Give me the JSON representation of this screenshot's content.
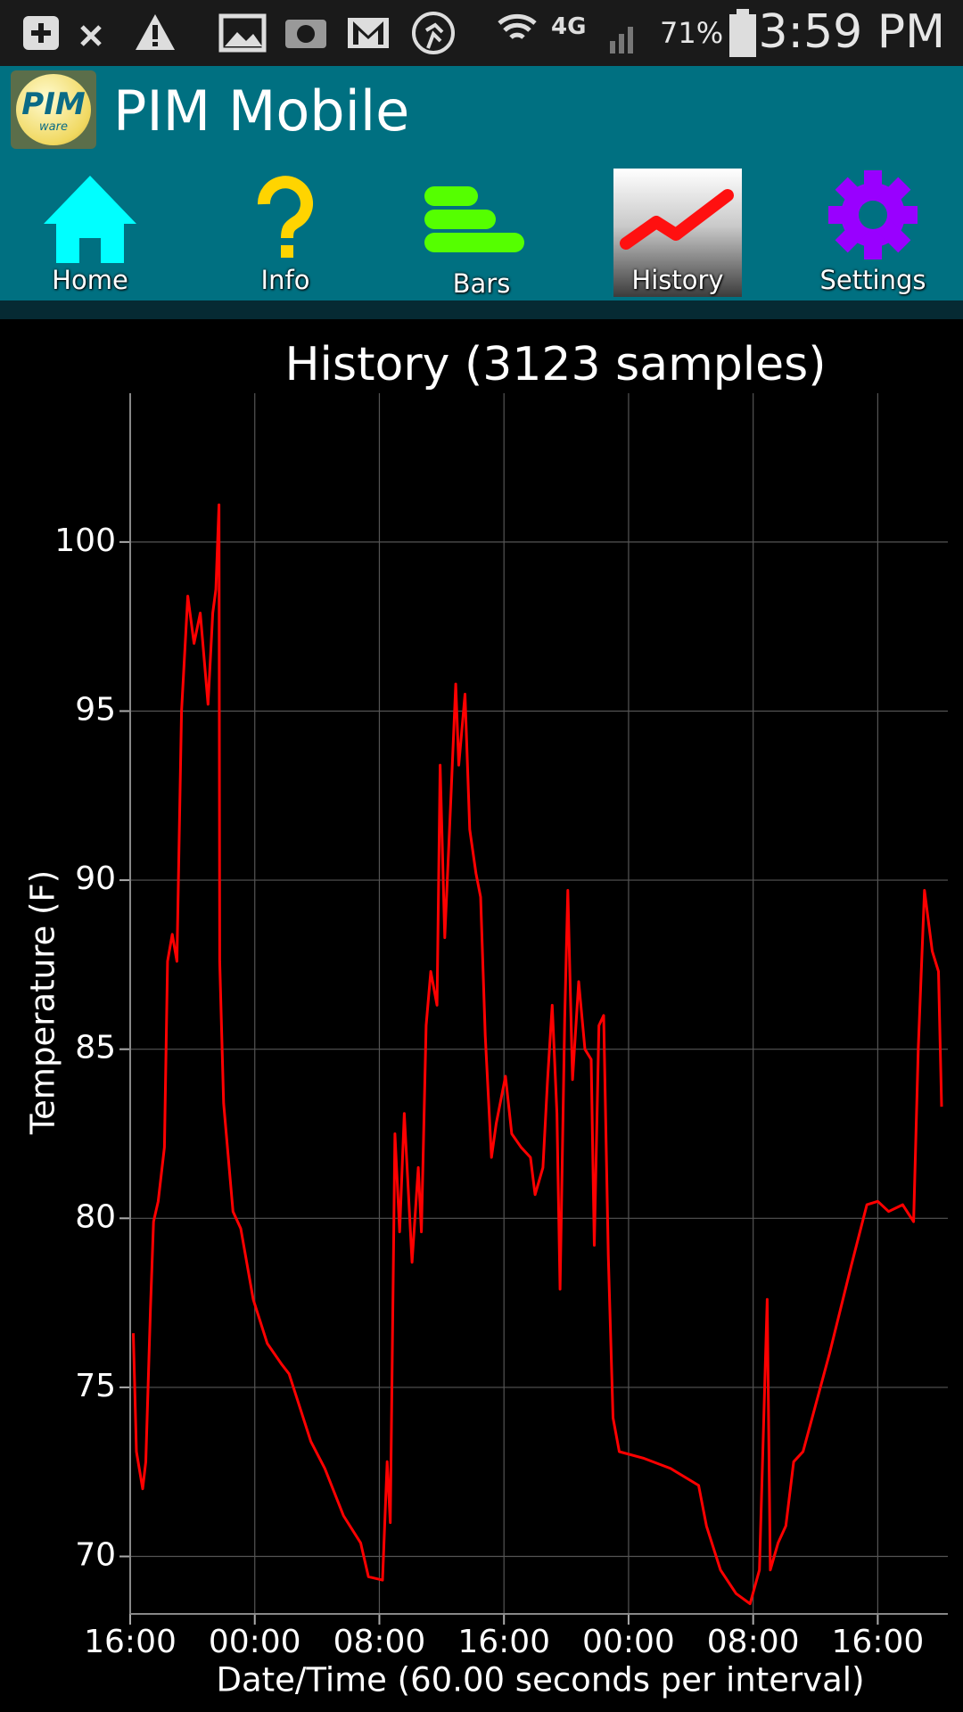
{
  "status_bar": {
    "network": "4G",
    "battery": "71%",
    "time": "3:59 PM"
  },
  "app_bar": {
    "logo_text": "PIM",
    "logo_subtext": "ware",
    "title": "PIM Mobile"
  },
  "tabs": [
    "Home",
    "Info",
    "Bars",
    "History",
    "Settings"
  ],
  "chart_data": {
    "type": "line",
    "title": "History  (3123 samples)",
    "x_label": "Date/Time  (60.00 seconds per interval)",
    "y_label": "Temperature (F)",
    "color": "#ff0000",
    "grid": true,
    "xlim": [
      0,
      52.5
    ],
    "xticks": [
      {
        "value": 0,
        "label": "16:00"
      },
      {
        "value": 8,
        "label": "00:00"
      },
      {
        "value": 16,
        "label": "08:00"
      },
      {
        "value": 24,
        "label": "16:00"
      },
      {
        "value": 32,
        "label": "00:00"
      },
      {
        "value": 40,
        "label": "08:00"
      },
      {
        "value": 48,
        "label": "16:00"
      }
    ],
    "ylim": [
      68.3,
      104.4
    ],
    "yticks": [
      70,
      75,
      80,
      85,
      90,
      95,
      100
    ],
    "x": [
      0.2,
      0.4,
      0.8,
      1.0,
      1.3,
      1.5,
      1.8,
      2.2,
      2.4,
      2.7,
      3.0,
      3.3,
      3.7,
      4.1,
      4.5,
      5.0,
      5.3,
      5.5,
      5.7,
      5.75,
      6.0,
      6.6,
      7.1,
      7.9,
      8.8,
      9.7,
      10.2,
      11.6,
      12.5,
      13.7,
      14.8,
      15.3,
      16.2,
      16.5,
      16.7,
      17.0,
      17.3,
      17.6,
      18.1,
      18.5,
      18.7,
      19.0,
      19.3,
      19.7,
      19.9,
      20.2,
      20.6,
      20.9,
      21.1,
      21.5,
      21.8,
      22.2,
      22.5,
      22.8,
      23.2,
      23.5,
      24.1,
      24.5,
      25.1,
      25.7,
      26.0,
      26.5,
      26.8,
      27.1,
      27.4,
      27.6,
      27.9,
      28.1,
      28.4,
      28.8,
      29.2,
      29.6,
      29.8,
      30.1,
      30.4,
      30.7,
      31.0,
      31.4,
      33.0,
      34.7,
      36.5,
      37.0,
      37.9,
      38.9,
      39.8,
      40.4,
      40.9,
      41.1,
      41.6,
      42.1,
      42.6,
      43.2,
      44.9,
      46.3,
      47.3,
      48.0,
      48.7,
      49.6,
      50.3,
      50.6,
      51.0,
      51.5,
      51.9,
      52.1
    ],
    "values": [
      76.6,
      73.1,
      72.0,
      72.8,
      77.3,
      79.9,
      80.5,
      82.1,
      87.6,
      88.4,
      87.6,
      95.0,
      98.4,
      97.0,
      97.9,
      95.2,
      97.9,
      98.6,
      101.1,
      87.6,
      83.4,
      80.2,
      79.7,
      77.6,
      76.3,
      75.7,
      75.4,
      73.4,
      72.6,
      71.2,
      70.4,
      69.4,
      69.3,
      72.8,
      71.0,
      82.5,
      79.6,
      83.1,
      78.7,
      81.5,
      79.6,
      85.7,
      87.3,
      86.3,
      93.4,
      88.3,
      92.5,
      95.8,
      93.4,
      95.5,
      91.5,
      90.2,
      89.5,
      85.4,
      81.8,
      82.8,
      84.2,
      82.5,
      82.1,
      81.8,
      80.7,
      81.5,
      84.1,
      86.3,
      83.1,
      77.9,
      85.9,
      89.7,
      84.1,
      87.0,
      85.0,
      84.7,
      79.2,
      85.7,
      86.0,
      78.9,
      74.1,
      73.1,
      72.9,
      72.6,
      72.1,
      70.9,
      69.6,
      68.9,
      68.6,
      69.6,
      77.6,
      69.6,
      70.4,
      70.9,
      72.8,
      73.1,
      76.0,
      78.6,
      80.4,
      80.5,
      80.2,
      80.4,
      79.9,
      85.0,
      89.7,
      87.9,
      87.3,
      83.3
    ]
  }
}
